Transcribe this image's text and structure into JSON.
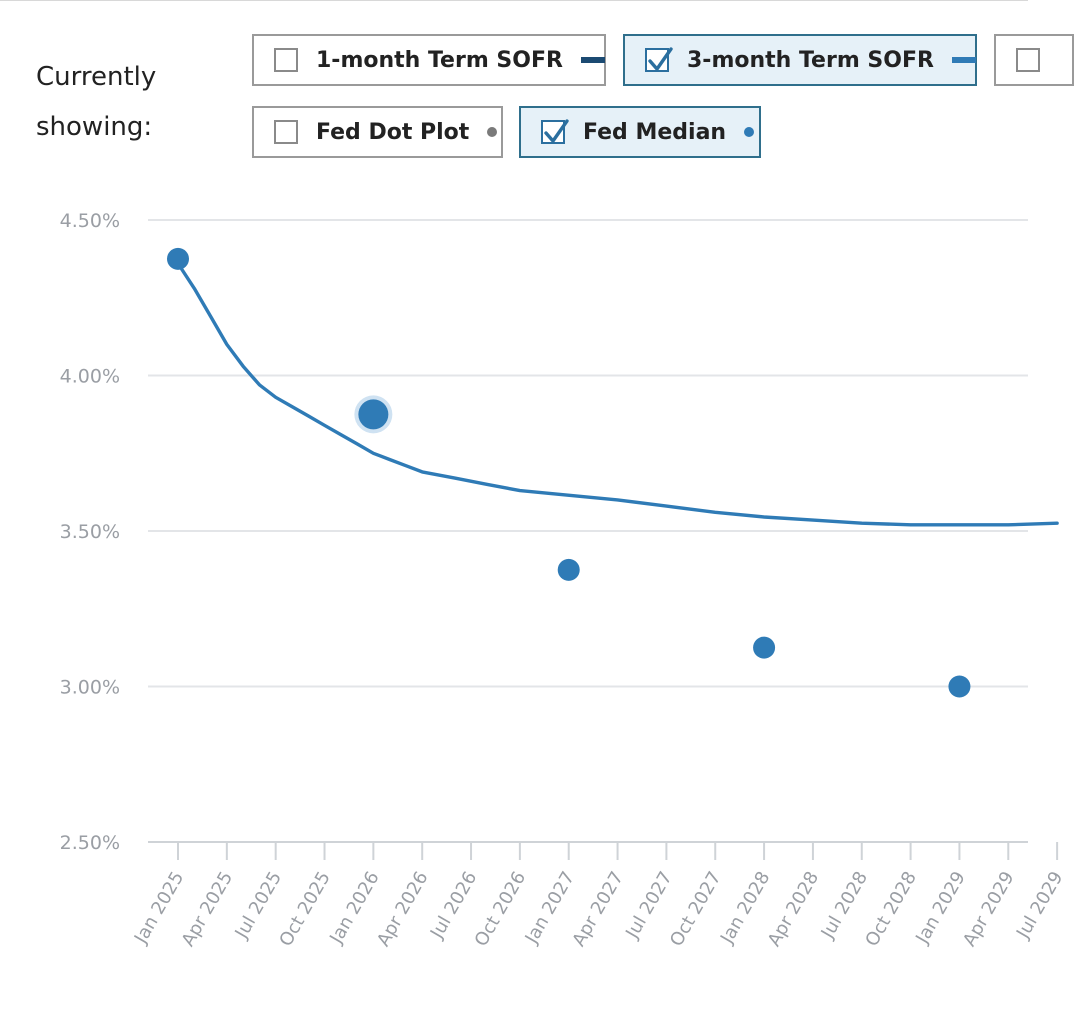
{
  "legend": {
    "showing_label": "Currently showing:",
    "toggles": [
      {
        "label": "1-month Term SOFR",
        "checked": false,
        "swatch": "line",
        "color": "#1b4a72"
      },
      {
        "label": "3-month Term SOFR",
        "checked": true,
        "swatch": "line",
        "color": "#2f7bb6"
      },
      {
        "label": "",
        "checked": false,
        "swatch": "none",
        "color": "#9a9a9a"
      },
      {
        "label": "Fed Dot Plot",
        "checked": false,
        "swatch": "dot",
        "color": "#7a7a7a"
      },
      {
        "label": "Fed Median",
        "checked": true,
        "swatch": "dot",
        "color": "#2f7bb6"
      }
    ]
  },
  "chart_data": {
    "type": "line",
    "y_ticks": [
      "2.50%",
      "3.00%",
      "3.50%",
      "4.00%",
      "4.50%"
    ],
    "y_tick_values": [
      2.5,
      3.0,
      3.5,
      4.0,
      4.5
    ],
    "ylim": [
      2.5,
      4.5
    ],
    "x_ticks": [
      "Jan 2025",
      "Apr 2025",
      "Jul 2025",
      "Oct 2025",
      "Jan 2026",
      "Apr 2026",
      "Jul 2026",
      "Oct 2026",
      "Jan 2027",
      "Apr 2027",
      "Jul 2027",
      "Oct 2027",
      "Jan 2028",
      "Apr 2028",
      "Jul 2028",
      "Oct 2028",
      "Jan 2029",
      "Apr 2029",
      "Jul 2029"
    ],
    "grid": true,
    "series": [
      {
        "name": "3-month Term SOFR",
        "kind": "line",
        "color": "#2f7bb6",
        "x": [
          "2025-01",
          "2025-02",
          "2025-03",
          "2025-04",
          "2025-05",
          "2025-06",
          "2025-07",
          "2025-08",
          "2025-09",
          "2025-10",
          "2025-11",
          "2025-12",
          "2026-01",
          "2026-02",
          "2026-03",
          "2026-04",
          "2026-06",
          "2026-08",
          "2026-10",
          "2026-12",
          "2027-02",
          "2027-04",
          "2027-07",
          "2027-10",
          "2028-01",
          "2028-04",
          "2028-07",
          "2028-10",
          "2029-01",
          "2029-04",
          "2029-07"
        ],
        "y": [
          4.36,
          4.28,
          4.19,
          4.1,
          4.03,
          3.97,
          3.93,
          3.9,
          3.87,
          3.84,
          3.81,
          3.78,
          3.75,
          3.73,
          3.71,
          3.69,
          3.67,
          3.65,
          3.63,
          3.62,
          3.61,
          3.6,
          3.58,
          3.56,
          3.545,
          3.535,
          3.525,
          3.52,
          3.52,
          3.52,
          3.525
        ]
      },
      {
        "name": "Fed Median",
        "kind": "points",
        "color": "#2f7bb6",
        "x": [
          "2025-01",
          "2026-01",
          "2027-01",
          "2028-01",
          "2029-01"
        ],
        "y": [
          4.375,
          3.875,
          3.375,
          3.125,
          3.0
        ],
        "highlighted": "2026-01"
      }
    ]
  }
}
